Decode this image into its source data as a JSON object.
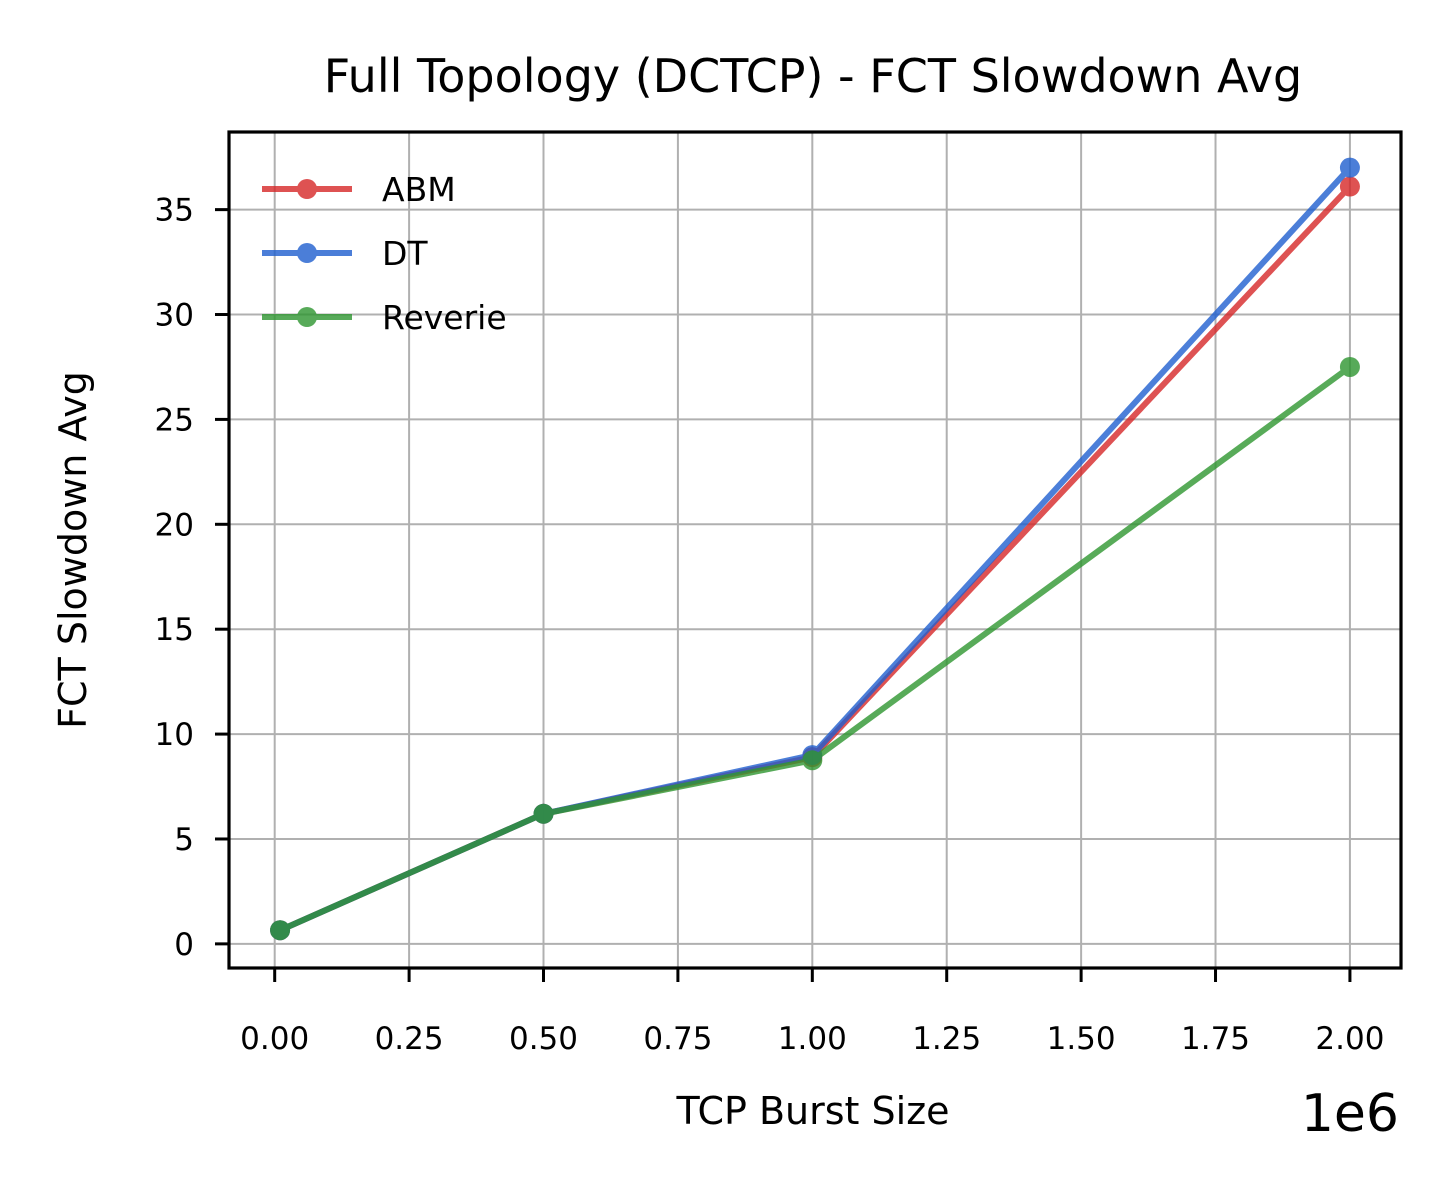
{
  "chart_data": {
    "type": "line",
    "title": "Full Topology (DCTCP) - FCT Slowdown Avg",
    "xlabel": "TCP Burst Size",
    "ylabel": "FCT Slowdown Avg",
    "x_offset_label": "1e6",
    "x": [
      0.01,
      0.5,
      1.0,
      2.0
    ],
    "xlim": [
      -0.085,
      2.095
    ],
    "ylim": [
      -1.15,
      38.7
    ],
    "xticks": [
      0.0,
      0.25,
      0.5,
      0.75,
      1.0,
      1.25,
      1.5,
      1.75,
      2.0
    ],
    "xtick_labels": [
      "0.00",
      "0.25",
      "0.50",
      "0.75",
      "1.00",
      "1.25",
      "1.50",
      "1.75",
      "2.00"
    ],
    "yticks": [
      0,
      5,
      10,
      15,
      20,
      25,
      30,
      35
    ],
    "ytick_labels": [
      "0",
      "5",
      "10",
      "15",
      "20",
      "25",
      "30",
      "35"
    ],
    "grid": true,
    "legend_position": "top-left",
    "series": [
      {
        "name": "ABM",
        "color": "#d62728",
        "values": [
          0.65,
          6.2,
          8.9,
          36.1
        ]
      },
      {
        "name": "DT",
        "color": "#1f5fcf",
        "values": [
          0.65,
          6.2,
          9.0,
          37.0
        ]
      },
      {
        "name": "Reverie",
        "color": "#2e9630",
        "values": [
          0.65,
          6.2,
          8.75,
          27.5
        ]
      }
    ]
  }
}
